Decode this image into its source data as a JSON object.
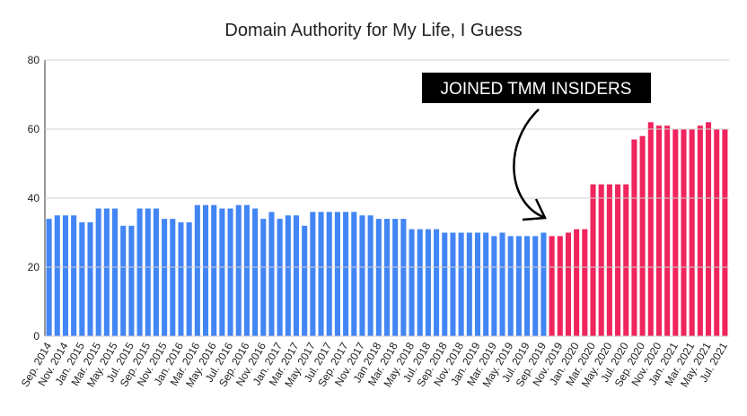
{
  "chart_data": {
    "type": "bar",
    "title": "Domain Authority for My Life, I Guess",
    "annotation": "JOINED TMM INSIDERS",
    "categories": [
      "Sep. 2014",
      null,
      "Nov. 2014",
      null,
      "Jan. 2015",
      null,
      "Mar. 2015",
      null,
      "May. 2015",
      null,
      "Jul. 2015",
      null,
      "Sep. 2015",
      null,
      "Nov. 2015",
      null,
      "Jan. 2016",
      null,
      "Mar. 2016",
      null,
      "May. 2016",
      null,
      "Jul. 2016",
      null,
      "Sep. 2016",
      null,
      "Nov. 2016",
      null,
      "Jan. 2017",
      null,
      "Mar. 2017",
      null,
      "May. 2017",
      null,
      "Jul. 2017",
      null,
      "Sep. 2017",
      null,
      "Nov. 2017",
      null,
      "Jan 2018",
      null,
      "Mar. 2018",
      null,
      "May. 2018",
      null,
      "Jul. 2018",
      null,
      "Sep. 2018",
      null,
      "Nov. 2018",
      null,
      "Jan. 2019",
      null,
      "Mar. 2019",
      null,
      "May. 2019",
      null,
      "Jul. 2019",
      null,
      "Sep. 2019",
      null,
      "Nov. 2019",
      null,
      "Jan. 2020",
      null,
      "Mar. 2020",
      null,
      "May. 2020",
      null,
      "Jul. 2020",
      null,
      "Sep. 2020",
      null,
      "Nov. 2020",
      null,
      "Jan. 2021",
      null,
      "Mar. 2021",
      null,
      "May. 2021",
      null,
      "Jul. 2021"
    ],
    "values": [
      34,
      35,
      35,
      35,
      33,
      33,
      37,
      37,
      37,
      32,
      32,
      37,
      37,
      37,
      34,
      34,
      33,
      33,
      38,
      38,
      38,
      37,
      37,
      38,
      38,
      37,
      34,
      36,
      34,
      35,
      35,
      32,
      36,
      36,
      36,
      36,
      36,
      36,
      35,
      35,
      34,
      34,
      34,
      34,
      31,
      31,
      31,
      31,
      30,
      30,
      30,
      30,
      30,
      30,
      29,
      30,
      29,
      29,
      29,
      29,
      30,
      29,
      29,
      30,
      31,
      31,
      44,
      44,
      44,
      44,
      44,
      57,
      58,
      62,
      61,
      61,
      60,
      60,
      60,
      61,
      62,
      60,
      60
    ],
    "colors": [
      "#4285f4",
      "#4285f4",
      "#4285f4",
      "#4285f4",
      "#4285f4",
      "#4285f4",
      "#4285f4",
      "#4285f4",
      "#4285f4",
      "#4285f4",
      "#4285f4",
      "#4285f4",
      "#4285f4",
      "#4285f4",
      "#4285f4",
      "#4285f4",
      "#4285f4",
      "#4285f4",
      "#4285f4",
      "#4285f4",
      "#4285f4",
      "#4285f4",
      "#4285f4",
      "#4285f4",
      "#4285f4",
      "#4285f4",
      "#4285f4",
      "#4285f4",
      "#4285f4",
      "#4285f4",
      "#4285f4",
      "#4285f4",
      "#4285f4",
      "#4285f4",
      "#4285f4",
      "#4285f4",
      "#4285f4",
      "#4285f4",
      "#4285f4",
      "#4285f4",
      "#4285f4",
      "#4285f4",
      "#4285f4",
      "#4285f4",
      "#4285f4",
      "#4285f4",
      "#4285f4",
      "#4285f4",
      "#4285f4",
      "#4285f4",
      "#4285f4",
      "#4285f4",
      "#4285f4",
      "#4285f4",
      "#4285f4",
      "#4285f4",
      "#4285f4",
      "#4285f4",
      "#4285f4",
      "#4285f4",
      "#4285f4",
      "#f0245e",
      "#f0245e",
      "#f0245e",
      "#f0245e",
      "#f0245e",
      "#f0245e",
      "#f0245e",
      "#f0245e",
      "#f0245e",
      "#f0245e",
      "#f0245e",
      "#f0245e",
      "#f0245e",
      "#f0245e",
      "#f0245e",
      "#f0245e",
      "#f0245e",
      "#f0245e",
      "#f0245e",
      "#f0245e",
      "#f0245e",
      "#f0245e"
    ],
    "ylim": [
      0,
      80
    ],
    "yticks": [
      0,
      20,
      40,
      60,
      80
    ],
    "grid": true
  }
}
